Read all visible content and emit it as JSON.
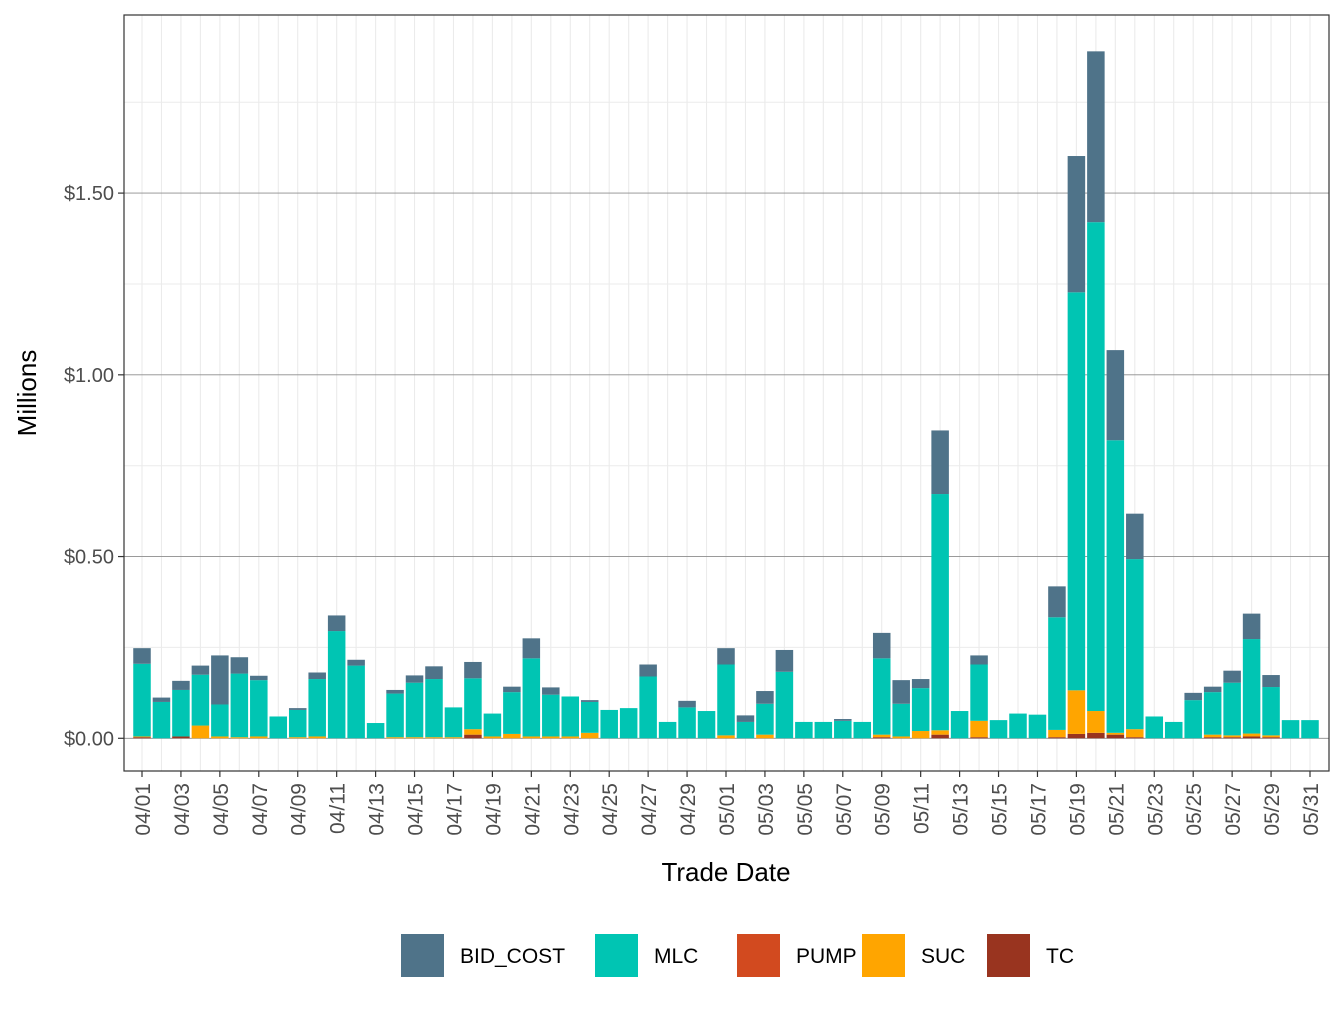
{
  "chart_data": {
    "type": "bar",
    "stacked": true,
    "xlabel": "Trade Date",
    "ylabel": "Millions",
    "ylim": [
      -0.09,
      1.99
    ],
    "y_ticks": [
      0,
      0.5,
      1.0,
      1.5
    ],
    "y_tick_labels": [
      "$0.00",
      "$0.50",
      "$1.00",
      "$1.50"
    ],
    "x_tick_labels": [
      "04/01",
      "04/03",
      "04/05",
      "04/07",
      "04/09",
      "04/11",
      "04/13",
      "04/15",
      "04/17",
      "04/19",
      "04/21",
      "04/23",
      "04/25",
      "04/27",
      "04/29",
      "05/01",
      "05/03",
      "05/05",
      "05/07",
      "05/09",
      "05/11",
      "05/13",
      "05/15",
      "05/17",
      "05/19",
      "05/21",
      "05/23",
      "05/25",
      "05/27",
      "05/29",
      "05/31"
    ],
    "categories": [
      "04/01",
      "04/02",
      "04/03",
      "04/04",
      "04/05",
      "04/06",
      "04/07",
      "04/08",
      "04/09",
      "04/10",
      "04/11",
      "04/12",
      "04/13",
      "04/14",
      "04/15",
      "04/16",
      "04/17",
      "04/18",
      "04/19",
      "04/20",
      "04/21",
      "04/22",
      "04/23",
      "04/24",
      "04/25",
      "04/26",
      "04/27",
      "04/28",
      "04/29",
      "04/30",
      "05/01",
      "05/02",
      "05/03",
      "05/04",
      "05/05",
      "05/06",
      "05/07",
      "05/08",
      "05/09",
      "05/10",
      "05/11",
      "05/12",
      "05/13",
      "05/14",
      "05/15",
      "05/16",
      "05/17",
      "05/18",
      "05/19",
      "05/20",
      "05/21",
      "05/22",
      "05/23",
      "05/24",
      "05/25",
      "05/26",
      "05/27",
      "05/28",
      "05/29",
      "05/30",
      "05/31"
    ],
    "series": [
      {
        "name": "TC",
        "color": "#99341F",
        "values": [
          0.003,
          0,
          0.005,
          0,
          0,
          0,
          0,
          0,
          0,
          0,
          0,
          0,
          0,
          0,
          0,
          0,
          0,
          0.01,
          0,
          0,
          0,
          0,
          0,
          0,
          0,
          0,
          0,
          0,
          0,
          0,
          0,
          0,
          0,
          0,
          0,
          0,
          0,
          0,
          0.003,
          0,
          0,
          0.01,
          0,
          0.003,
          0,
          0,
          0,
          0.003,
          0.012,
          0.015,
          0.01,
          0.003,
          0,
          0,
          0,
          0.003,
          0.003,
          0.005,
          0.003,
          0,
          0
        ]
      },
      {
        "name": "PUMP",
        "color": "#D24A1F",
        "values": [
          0,
          0,
          0,
          0,
          0,
          0,
          0,
          0,
          0,
          0,
          0,
          0,
          0,
          0,
          0,
          0,
          0,
          0,
          0,
          0,
          0,
          0,
          0,
          0,
          0,
          0,
          0,
          0,
          0,
          0,
          0,
          0,
          0,
          0,
          0,
          0,
          0,
          0,
          0,
          0,
          0,
          0,
          0,
          0,
          0,
          0,
          0,
          0,
          0,
          0,
          0,
          0,
          0,
          0,
          0,
          0,
          0,
          0,
          0,
          0,
          0
        ]
      },
      {
        "name": "SUC",
        "color": "#FFA500",
        "values": [
          0.002,
          0,
          0,
          0.035,
          0.005,
          0.003,
          0.005,
          0,
          0.003,
          0.005,
          0,
          0,
          0,
          0.003,
          0.003,
          0.003,
          0.003,
          0.015,
          0.005,
          0.012,
          0.005,
          0.005,
          0.005,
          0.015,
          0,
          0,
          0,
          0,
          0,
          0,
          0.008,
          0,
          0.01,
          0,
          0,
          0,
          0,
          0,
          0.007,
          0.005,
          0.02,
          0.012,
          0,
          0.045,
          0,
          0,
          0,
          0.02,
          0.12,
          0.06,
          0.005,
          0.022,
          0,
          0,
          0,
          0.007,
          0.005,
          0.008,
          0.005,
          0,
          0
        ]
      },
      {
        "name": "MLC",
        "color": "#00C5B3",
        "values": [
          0.2,
          0.1,
          0.128,
          0.14,
          0.088,
          0.175,
          0.155,
          0.06,
          0.075,
          0.158,
          0.295,
          0.2,
          0.042,
          0.12,
          0.15,
          0.16,
          0.082,
          0.14,
          0.063,
          0.115,
          0.215,
          0.115,
          0.11,
          0.085,
          0.078,
          0.083,
          0.17,
          0.045,
          0.085,
          0.075,
          0.195,
          0.045,
          0.085,
          0.183,
          0.045,
          0.045,
          0.048,
          0.045,
          0.21,
          0.09,
          0.118,
          0.65,
          0.075,
          0.155,
          0.05,
          0.068,
          0.065,
          0.31,
          1.095,
          1.345,
          0.805,
          0.468,
          0.06,
          0.045,
          0.105,
          0.117,
          0.145,
          0.26,
          0.133,
          0.05,
          0.05
        ]
      },
      {
        "name": "BID_COST",
        "color": "#4F7389",
        "values": [
          0.043,
          0.012,
          0.025,
          0.025,
          0.135,
          0.045,
          0.012,
          0,
          0.005,
          0.018,
          0.043,
          0.016,
          0,
          0.01,
          0.02,
          0.035,
          0,
          0.045,
          0,
          0.015,
          0.055,
          0.02,
          0,
          0.005,
          0,
          0,
          0.033,
          0,
          0.018,
          0,
          0.045,
          0.018,
          0.035,
          0.06,
          0,
          0,
          0.005,
          0,
          0.07,
          0.065,
          0.025,
          0.175,
          0,
          0.025,
          0,
          0,
          0,
          0.085,
          0.375,
          0.47,
          0.248,
          0.125,
          0,
          0,
          0.02,
          0.015,
          0.033,
          0.07,
          0.033,
          0,
          0
        ]
      }
    ],
    "legend_order": [
      "BID_COST",
      "MLC",
      "PUMP",
      "SUC",
      "TC"
    ],
    "legend_position": "bottom",
    "grid": true
  }
}
